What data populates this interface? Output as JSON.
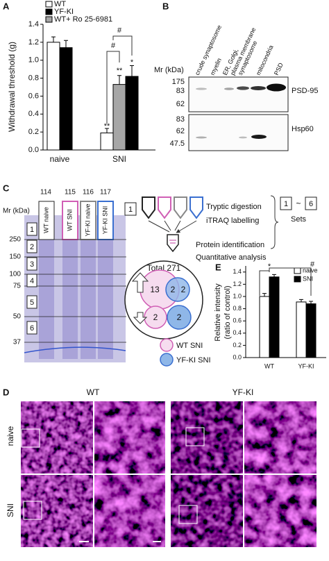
{
  "chart_data": [
    {
      "type": "bar",
      "panel_label": "A",
      "y_label": "Withdrawal threshold (g)",
      "categories": [
        "naive",
        "SNI"
      ],
      "series": [
        {
          "name": "WT",
          "color": "#ffffff",
          "values": [
            1.2,
            0.19
          ],
          "errors": [
            0.06,
            0.05
          ]
        },
        {
          "name": "YF-KI",
          "color": "#000000",
          "values": [
            1.14,
            0.82
          ],
          "errors": [
            0.08,
            0.12
          ]
        },
        {
          "name": "WT+ Ro 25-6981",
          "color": "#a6a6a6",
          "values": [
            null,
            0.73
          ],
          "errors": [
            null,
            0.1
          ]
        }
      ],
      "ylim": [
        0,
        1.4
      ],
      "yticks": [
        {
          "value": 0,
          "label": "0.0"
        },
        0.2,
        0.4,
        0.6,
        0.8,
        {
          "value": 1,
          "label": "1.0"
        },
        1.2,
        1.4
      ],
      "annotations": [
        "**",
        "**",
        "*",
        "#",
        "#"
      ]
    },
    {
      "type": "bar",
      "panel_label": "E",
      "y_label": [
        "Relative intensity",
        "(ratio of control)"
      ],
      "categories": [
        "WT",
        "YF-KI"
      ],
      "series": [
        {
          "name": "naive",
          "color": "#ffffff",
          "values": [
            1.0,
            0.91
          ],
          "errors": [
            0.05,
            0.04
          ]
        },
        {
          "name": "SNI",
          "color": "#000000",
          "values": [
            1.32,
            0.88
          ],
          "errors": [
            0.04,
            0.04
          ]
        }
      ],
      "ylim": [
        0,
        1.5
      ],
      "yticks": [
        {
          "value": 0,
          "label": "0.0"
        },
        0.2,
        0.4,
        0.6,
        0.8,
        {
          "value": 1,
          "label": "1.0"
        },
        1.2,
        1.4
      ],
      "annotations": [
        "*",
        "#"
      ]
    }
  ],
  "panel_b": {
    "label": "B",
    "mr_label": "Mr (kDa)",
    "column_labels": [
      "crude synaptosome",
      "myelin",
      "ER, Golgi,",
      "plasma membrane",
      "synaptosome",
      "mitocondria",
      "PSD"
    ],
    "blots": [
      {
        "name": "PSD-95",
        "markers": [
          175,
          83,
          62
        ]
      },
      {
        "name": "Hsp60",
        "markers": [
          83,
          62,
          47.5
        ]
      }
    ]
  },
  "panel_c": {
    "label": "C",
    "mr_label": "Mr (kDa)",
    "channels": [
      114,
      115,
      116,
      117
    ],
    "lanes": [
      "WT naive",
      "WT SNI",
      "YF-KI naive",
      "YF-KI SNI"
    ],
    "markers": [
      250,
      150,
      100,
      75,
      50,
      37
    ],
    "bands": [
      1,
      2,
      3,
      4,
      5,
      6
    ],
    "sample_box": 1,
    "steps": [
      "Tryptic digestion",
      "iTRAQ labelling",
      "Protein identification",
      "Quantitative analysis"
    ],
    "sets": {
      "from": 1,
      "separator": "~",
      "to": 6,
      "label": "Sets"
    },
    "venn": {
      "total": "Total 271",
      "up": [
        13,
        2,
        2
      ],
      "down": [
        2,
        2
      ]
    },
    "legend": [
      "WT SNI",
      "YF-KI SNI"
    ]
  },
  "panel_d": {
    "label": "D",
    "columns": [
      "WT",
      "YF-KI"
    ],
    "rows": [
      "naive",
      "SNI"
    ]
  }
}
